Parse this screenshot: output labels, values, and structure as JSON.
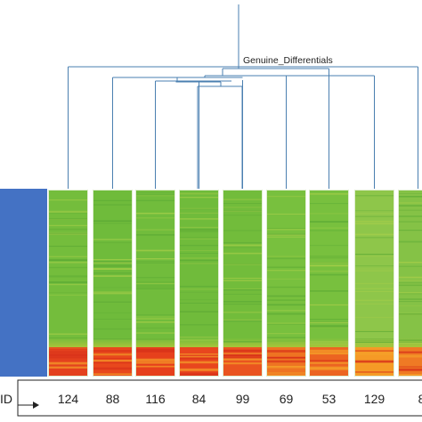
{
  "chart_data": {
    "type": "heatmap",
    "title": "",
    "dendrogram": {
      "label": "Genuine_Differentials",
      "color": "#4a7fb0"
    },
    "id_label": "ID",
    "columns": [
      {
        "count": "124",
        "red_share": 0.25,
        "mid_tone": "#74bd3c",
        "base": "#e4411e"
      },
      {
        "count": "88",
        "red_share": 0.25,
        "mid_tone": "#6fbb3b",
        "base": "#e8481d"
      },
      {
        "count": "116",
        "red_share": 0.25,
        "mid_tone": "#71bc3c",
        "base": "#e6401c"
      },
      {
        "count": "84",
        "red_share": 0.25,
        "mid_tone": "#70bb3b",
        "base": "#e8461e"
      },
      {
        "count": "99",
        "red_share": 0.25,
        "mid_tone": "#72bc3b",
        "base": "#ea5420"
      },
      {
        "count": "69",
        "red_share": 0.25,
        "mid_tone": "#78c03e",
        "base": "#ee7422"
      },
      {
        "count": "53",
        "red_share": 0.25,
        "mid_tone": "#78c03e",
        "base": "#ec6421"
      },
      {
        "count": "129",
        "red_share": 0.25,
        "mid_tone": "#8ec64a",
        "base": "#f59a26"
      },
      {
        "count": "8",
        "red_share": 0.25,
        "mid_tone": "#85c246",
        "base": "#ef7a24"
      }
    ],
    "row_bar_color": "#4472c4",
    "palette": {
      "low": "#f2401a",
      "mid": "#f6a025",
      "high": "#6db83a"
    },
    "legend": "none",
    "grid": false
  }
}
